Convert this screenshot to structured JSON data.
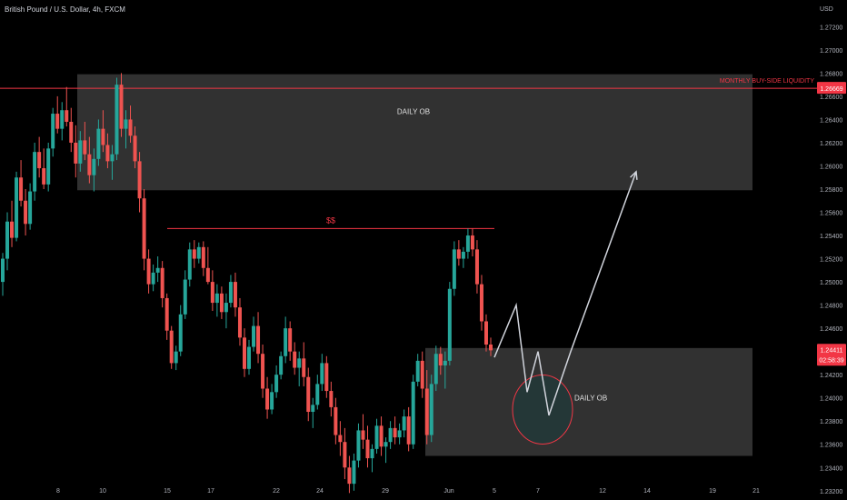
{
  "symbol": {
    "title": "British Pound / U.S. Dollar, 4h, FXCM"
  },
  "axis": {
    "currency": "USD"
  },
  "chart_data": {
    "type": "candlestick",
    "xlabel": "",
    "ylabel": "",
    "ylim": [
      1.2312,
      1.2743
    ],
    "y_ticks": [
      1.272,
      1.27,
      1.268,
      1.266,
      1.264,
      1.262,
      1.26,
      1.258,
      1.256,
      1.254,
      1.252,
      1.25,
      1.248,
      1.246,
      1.244,
      1.242,
      1.24,
      1.238,
      1.236,
      1.234,
      1.232
    ],
    "y_tick_labels": [
      "1.27200",
      "1.27000",
      "1.26800",
      "1.26600",
      "1.26400",
      "1.26200",
      "1.26000",
      "1.25800",
      "1.25600",
      "1.25400",
      "1.25200",
      "1.25000",
      "1.24800",
      "1.24600",
      "1.24400",
      "1.24200",
      "1.24000",
      "1.23800",
      "1.23600",
      "1.23400",
      "1.23200"
    ],
    "x_ticks": [
      "8",
      "10",
      "15",
      "17",
      "22",
      "24",
      "29",
      "Jun",
      "5",
      "7",
      "12",
      "14",
      "19",
      "21"
    ],
    "colors": {
      "up": "#26a69a",
      "down": "#ef5350",
      "zone": "#3a3a3a",
      "arrow": "#d1d4dc",
      "accent_line": "#f23645"
    },
    "price_labels": {
      "liquidity_level": "1.26669",
      "current_price": "1.24411",
      "countdown": "02:58:39"
    },
    "levels": [
      {
        "name": "monthly_liquidity",
        "value": 1.26669,
        "label": "MONTHLY BUY-SIDE LIQUIDITY"
      },
      {
        "name": "equal_highs",
        "value": 1.2546,
        "label": "$$"
      }
    ],
    "zones": [
      {
        "label": "DAILY OB",
        "top": 1.2679,
        "bottom": 1.2579,
        "from": "9",
        "to": "end"
      },
      {
        "label": "DAILY OB",
        "top": 1.2443,
        "bottom": 1.235,
        "from": "Jun-2",
        "to": "end"
      }
    ],
    "projection_path": [
      {
        "x": "5",
        "y": 1.2435
      },
      {
        "x": "6",
        "y": 1.248
      },
      {
        "x": "6.5",
        "y": 1.2405
      },
      {
        "x": "7",
        "y": 1.244
      },
      {
        "x": "7.5",
        "y": 1.2385
      },
      {
        "x": "8.5",
        "y": 1.244
      },
      {
        "x": "11.5",
        "y": 1.2595
      }
    ],
    "candles_ohlc": [
      [
        1.25,
        1.2525,
        1.2488,
        1.252
      ],
      [
        1.252,
        1.256,
        1.251,
        1.2552
      ],
      [
        1.2552,
        1.257,
        1.253,
        1.2538
      ],
      [
        1.2538,
        1.2595,
        1.2535,
        1.259
      ],
      [
        1.259,
        1.2605,
        1.2565,
        1.257
      ],
      [
        1.257,
        1.258,
        1.254,
        1.255
      ],
      [
        1.255,
        1.2585,
        1.2545,
        1.2578
      ],
      [
        1.2578,
        1.262,
        1.257,
        1.2612
      ],
      [
        1.2612,
        1.2625,
        1.259,
        1.2598
      ],
      [
        1.2598,
        1.2615,
        1.258,
        1.2584
      ],
      [
        1.2584,
        1.262,
        1.2578,
        1.2615
      ],
      [
        1.2615,
        1.265,
        1.2608,
        1.2645
      ],
      [
        1.2645,
        1.266,
        1.2628,
        1.2632
      ],
      [
        1.2632,
        1.2655,
        1.2622,
        1.2648
      ],
      [
        1.2648,
        1.2668,
        1.2634,
        1.2638
      ],
      [
        1.2638,
        1.265,
        1.2612,
        1.262
      ],
      [
        1.262,
        1.2635,
        1.259,
        1.2602
      ],
      [
        1.2602,
        1.263,
        1.2595,
        1.2622
      ],
      [
        1.2622,
        1.2638,
        1.2605,
        1.261
      ],
      [
        1.261,
        1.2625,
        1.2585,
        1.2592
      ],
      [
        1.2592,
        1.2615,
        1.2578,
        1.2606
      ],
      [
        1.2606,
        1.264,
        1.26,
        1.2632
      ],
      [
        1.2632,
        1.2648,
        1.2612,
        1.2618
      ],
      [
        1.2618,
        1.2628,
        1.2598,
        1.2604
      ],
      [
        1.2604,
        1.2618,
        1.2588,
        1.261
      ],
      [
        1.261,
        1.2676,
        1.2605,
        1.267
      ],
      [
        1.267,
        1.268,
        1.2625,
        1.2632
      ],
      [
        1.2632,
        1.2648,
        1.2615,
        1.264
      ],
      [
        1.264,
        1.2652,
        1.262,
        1.2626
      ],
      [
        1.2626,
        1.2634,
        1.2598,
        1.2604
      ],
      [
        1.2604,
        1.2612,
        1.256,
        1.2572
      ],
      [
        1.2572,
        1.258,
        1.251,
        1.252
      ],
      [
        1.252,
        1.2528,
        1.249,
        1.2498
      ],
      [
        1.2498,
        1.2515,
        1.2492,
        1.2508
      ],
      [
        1.2508,
        1.2522,
        1.25,
        1.2512
      ],
      [
        1.2512,
        1.2518,
        1.2478,
        1.2486
      ],
      [
        1.2486,
        1.249,
        1.245,
        1.2458
      ],
      [
        1.2458,
        1.2462,
        1.2425,
        1.243
      ],
      [
        1.243,
        1.2445,
        1.2424,
        1.244
      ],
      [
        1.244,
        1.248,
        1.2436,
        1.2472
      ],
      [
        1.2472,
        1.251,
        1.2468,
        1.2502
      ],
      [
        1.2502,
        1.2534,
        1.2496,
        1.2528
      ],
      [
        1.2528,
        1.2536,
        1.2512,
        1.252
      ],
      [
        1.252,
        1.2534,
        1.2516,
        1.253
      ],
      [
        1.253,
        1.2535,
        1.2505,
        1.2512
      ],
      [
        1.2512,
        1.253,
        1.2498,
        1.25
      ],
      [
        1.25,
        1.251,
        1.2475,
        1.2482
      ],
      [
        1.2482,
        1.2498,
        1.247,
        1.249
      ],
      [
        1.249,
        1.2496,
        1.2468,
        1.2474
      ],
      [
        1.2474,
        1.249,
        1.246,
        1.2482
      ],
      [
        1.2482,
        1.2506,
        1.2478,
        1.25
      ],
      [
        1.25,
        1.2508,
        1.247,
        1.2478
      ],
      [
        1.2478,
        1.2486,
        1.2445,
        1.2452
      ],
      [
        1.2452,
        1.246,
        1.2418,
        1.2425
      ],
      [
        1.2425,
        1.245,
        1.242,
        1.2444
      ],
      [
        1.2444,
        1.247,
        1.244,
        1.2462
      ],
      [
        1.2462,
        1.2474,
        1.243,
        1.2438
      ],
      [
        1.2438,
        1.2446,
        1.24,
        1.2408
      ],
      [
        1.2408,
        1.2418,
        1.2382,
        1.239
      ],
      [
        1.239,
        1.2412,
        1.2386,
        1.2405
      ],
      [
        1.2405,
        1.2428,
        1.24,
        1.242
      ],
      [
        1.242,
        1.244,
        1.2416,
        1.2436
      ],
      [
        1.2436,
        1.247,
        1.243,
        1.246
      ],
      [
        1.246,
        1.2466,
        1.2432,
        1.244
      ],
      [
        1.244,
        1.2448,
        1.242,
        1.2426
      ],
      [
        1.2426,
        1.244,
        1.241,
        1.2434
      ],
      [
        1.2434,
        1.2448,
        1.241,
        1.2418
      ],
      [
        1.2418,
        1.2426,
        1.238,
        1.2388
      ],
      [
        1.2388,
        1.24,
        1.2374,
        1.2394
      ],
      [
        1.2394,
        1.242,
        1.239,
        1.2412
      ],
      [
        1.2412,
        1.2438,
        1.2406,
        1.243
      ],
      [
        1.243,
        1.2436,
        1.24,
        1.2406
      ],
      [
        1.2406,
        1.2414,
        1.2384,
        1.2392
      ],
      [
        1.2392,
        1.24,
        1.236,
        1.2368
      ],
      [
        1.2368,
        1.238,
        1.235,
        1.2362
      ],
      [
        1.2362,
        1.2374,
        1.233,
        1.234
      ],
      [
        1.234,
        1.235,
        1.2318,
        1.2326
      ],
      [
        1.2326,
        1.2352,
        1.232,
        1.2346
      ],
      [
        1.2346,
        1.2378,
        1.234,
        1.2372
      ],
      [
        1.2372,
        1.2386,
        1.2356,
        1.2364
      ],
      [
        1.2364,
        1.2376,
        1.234,
        1.2348
      ],
      [
        1.2348,
        1.236,
        1.2336,
        1.2356
      ],
      [
        1.2356,
        1.2382,
        1.2352,
        1.2376
      ],
      [
        1.2376,
        1.2384,
        1.235,
        1.2358
      ],
      [
        1.2358,
        1.2366,
        1.2344,
        1.2362
      ],
      [
        1.2362,
        1.238,
        1.2356,
        1.2374
      ],
      [
        1.2374,
        1.2384,
        1.236,
        1.2366
      ],
      [
        1.2366,
        1.2378,
        1.236,
        1.2372
      ],
      [
        1.2372,
        1.239,
        1.2366,
        1.2384
      ],
      [
        1.2384,
        1.2392,
        1.2354,
        1.236
      ],
      [
        1.236,
        1.242,
        1.2356,
        1.2414
      ],
      [
        1.2414,
        1.2438,
        1.241,
        1.2432
      ],
      [
        1.2432,
        1.244,
        1.24,
        1.2408
      ],
      [
        1.2408,
        1.2424,
        1.236,
        1.2368
      ],
      [
        1.2368,
        1.242,
        1.2362,
        1.2412
      ],
      [
        1.2412,
        1.2445,
        1.2406,
        1.2438
      ],
      [
        1.2438,
        1.2444,
        1.242,
        1.2428
      ],
      [
        1.2428,
        1.244,
        1.2408,
        1.2432
      ],
      [
        1.2432,
        1.25,
        1.2428,
        1.2494
      ],
      [
        1.2494,
        1.2535,
        1.2488,
        1.2528
      ],
      [
        1.2528,
        1.2536,
        1.2514,
        1.252
      ],
      [
        1.252,
        1.253,
        1.2512,
        1.2526
      ],
      [
        1.2526,
        1.2546,
        1.252,
        1.254
      ],
      [
        1.254,
        1.2546,
        1.2522,
        1.2528
      ],
      [
        1.2528,
        1.2536,
        1.249,
        1.2498
      ],
      [
        1.2498,
        1.2506,
        1.2458,
        1.2466
      ],
      [
        1.2466,
        1.2472,
        1.244,
        1.2446
      ],
      [
        1.2446,
        1.2452,
        1.2436,
        1.2441
      ]
    ]
  }
}
